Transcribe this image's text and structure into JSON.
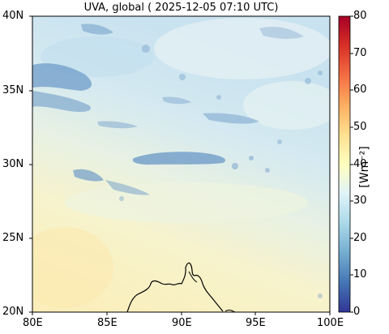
{
  "title": "UVA, global ( 2025-12-05 07:10 UTC)",
  "map": {
    "lat_ticks": [
      "20N",
      "25N",
      "30N",
      "35N",
      "40N"
    ],
    "lon_ticks": [
      "80E",
      "85E",
      "90E",
      "95E",
      "100E"
    ],
    "lat_range": [
      20,
      40
    ],
    "lon_range": [
      80,
      100
    ]
  },
  "colorbar": {
    "label": "[Wm⁻²]",
    "ticks": [
      "0",
      "10",
      "20",
      "30",
      "40",
      "50",
      "60",
      "70",
      "80"
    ],
    "range": [
      0,
      80
    ],
    "colormap": "RdYlBu_r"
  },
  "colors": {
    "clear_sky_south": "#fbf1c2",
    "clear_sky_north": "#cfe6f0",
    "cloud": "#5d8fc0",
    "coastline": "#000000"
  }
}
